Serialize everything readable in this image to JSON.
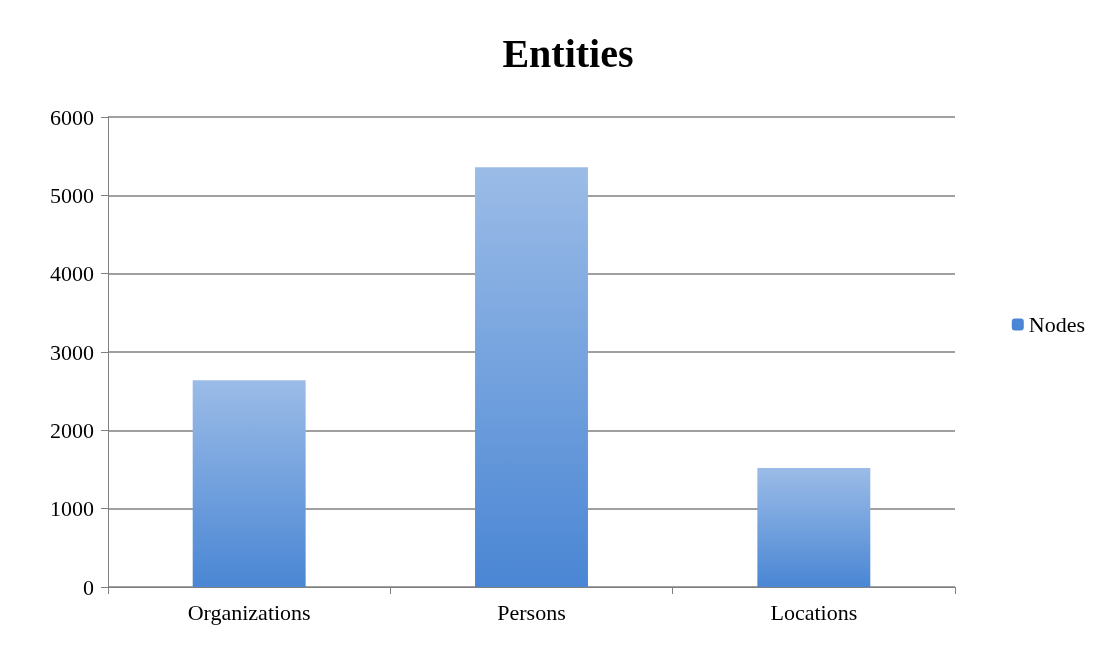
{
  "chart_data": {
    "type": "bar",
    "title": "Entities",
    "categories": [
      "Organizations",
      "Persons",
      "Locations"
    ],
    "series": [
      {
        "name": "Nodes",
        "color": "#4a86d4",
        "values": [
          2640,
          5360,
          1520
        ]
      }
    ],
    "ylim": [
      0,
      6000
    ],
    "yticks": [
      0,
      1000,
      2000,
      3000,
      4000,
      5000,
      6000
    ],
    "grid": "y",
    "legend": "right"
  }
}
